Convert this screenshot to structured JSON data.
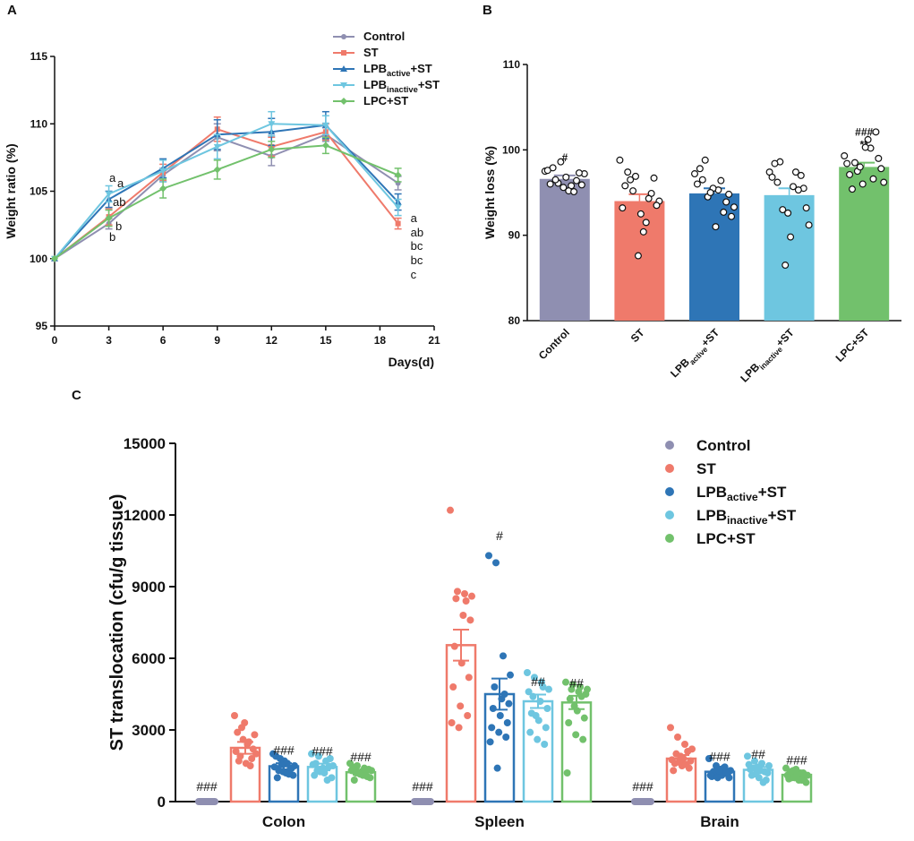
{
  "colors": {
    "Control": "#8f8fb1",
    "ST": "#ef7a6b",
    "LPB_active": "#2e75b6",
    "LPB_inactive": "#6ec6e0",
    "LPC": "#72c16c"
  },
  "legend": [
    {
      "key": "Control",
      "label": "Control",
      "sub": ""
    },
    {
      "key": "ST",
      "label": "ST",
      "sub": ""
    },
    {
      "key": "LPB_active",
      "label": "LPB",
      "sub": "active",
      "suffix": "+ST"
    },
    {
      "key": "LPB_inactive",
      "label": "LPB",
      "sub": "inactive",
      "suffix": "+ST"
    },
    {
      "key": "LPC",
      "label": "LPC+ST",
      "sub": ""
    }
  ],
  "chart_data": [
    {
      "panel": "A",
      "type": "line",
      "xlabel": "Days(d)",
      "ylabel": "Weight ratio (%)",
      "x": [
        0,
        3,
        6,
        9,
        12,
        15,
        19
      ],
      "xticks": [
        "0",
        "3",
        "6",
        "9",
        "12",
        "15",
        "18",
        "21"
      ],
      "xlim": [
        0,
        21
      ],
      "ylim": [
        95,
        115
      ],
      "yticks": [
        "95",
        "100",
        "105",
        "110",
        "115"
      ],
      "series": [
        {
          "key": "Control",
          "name": "Control",
          "values": [
            100,
            102.6,
            106.2,
            109.0,
            107.6,
            109.2,
            105.6
          ],
          "err": [
            0,
            0.4,
            0.5,
            1.0,
            0.7,
            0.5,
            0.5
          ],
          "letter": "ab",
          "letter3": "b"
        },
        {
          "key": "ST",
          "name": "ST",
          "values": [
            100,
            103.1,
            106.4,
            109.6,
            108.3,
            109.4,
            102.6
          ],
          "err": [
            0,
            0.6,
            0.6,
            0.9,
            0.7,
            0.6,
            0.4
          ],
          "letter": "c",
          "letter3": "ab"
        },
        {
          "key": "LPB_active",
          "name": "LPB active +ST",
          "values": [
            100,
            104.4,
            106.7,
            109.2,
            109.4,
            109.9,
            104.2
          ],
          "err": [
            0,
            0.6,
            0.7,
            1.1,
            1.0,
            1.0,
            0.6
          ],
          "letter": "bc",
          "letter3": "a"
        },
        {
          "key": "LPB_inactive",
          "name": "LPB inactive +ST",
          "values": [
            100,
            104.8,
            106.5,
            108.3,
            110.0,
            109.9,
            103.8
          ],
          "err": [
            0,
            0.6,
            0.8,
            0.9,
            0.9,
            0.7,
            0.6
          ],
          "letter": "bc",
          "letter3": "a"
        },
        {
          "key": "LPC",
          "name": "LPC+ST",
          "values": [
            100,
            103.0,
            105.2,
            106.6,
            108.1,
            108.4,
            106.2
          ],
          "err": [
            0,
            0.6,
            0.7,
            0.7,
            0.6,
            0.6,
            0.5
          ],
          "letter": "a",
          "letter3": "b"
        }
      ]
    },
    {
      "panel": "B",
      "type": "bar",
      "ylabel": "Weight loss (%)",
      "ylim": [
        80,
        110
      ],
      "yticks": [
        "80",
        "90",
        "100",
        "110"
      ],
      "categories": [
        "Control",
        "ST",
        "LPB active +ST",
        "LPB inactive +ST",
        "LPC+ST"
      ],
      "keys": [
        "Control",
        "ST",
        "LPB_active",
        "LPB_inactive",
        "LPC"
      ],
      "values": [
        96.6,
        94.0,
        94.9,
        94.7,
        98.0
      ],
      "err": [
        0.4,
        0.8,
        0.6,
        0.8,
        0.5
      ],
      "annotations": [
        "#",
        "",
        "",
        "",
        "###\n**"
      ],
      "points": [
        [
          97.5,
          96.1,
          95.8,
          97.2,
          96.5,
          95.2,
          95.9,
          97.9,
          96.8,
          97.3,
          96.0,
          95.6,
          96.4,
          97.6,
          98.6,
          95.1
        ],
        [
          98.8,
          95.2,
          91.5,
          94.0,
          96.5,
          90.4,
          93.5,
          97.4,
          92.5,
          96.7,
          95.8,
          87.6,
          94.9,
          93.2,
          96.9,
          94.3
        ],
        [
          97.2,
          94.5,
          96.4,
          93.3,
          98.8,
          95.3,
          92.2,
          96.5,
          91.0,
          94.8,
          97.8,
          95.5,
          93.9,
          96.0,
          95.0,
          92.7
        ],
        [
          97.4,
          93.0,
          97.4,
          91.2,
          98.6,
          95.7,
          93.2,
          96.2,
          89.8,
          95.5,
          98.4,
          92.6,
          97.0,
          96.8,
          86.5,
          95.3
        ],
        [
          99.3,
          97.5,
          100.2,
          96.2,
          98.5,
          101.2,
          97.8,
          95.4,
          100.3,
          99.0,
          97.1,
          96.0,
          102.1,
          98.4,
          98.0,
          96.6
        ]
      ]
    },
    {
      "panel": "C",
      "type": "bar",
      "ylabel": "ST translocation (cfu/g tissue)",
      "ylim": [
        0,
        15000
      ],
      "yticks": [
        "0",
        "3000",
        "6000",
        "9000",
        "12000",
        "15000"
      ],
      "categories": [
        "Colon",
        "Spleen",
        "Brain"
      ],
      "series": [
        {
          "key": "Control",
          "name": "Control",
          "values": [
            0,
            0,
            0
          ],
          "err": [
            0,
            0,
            0
          ],
          "sig": [
            "###",
            "###",
            "###"
          ]
        },
        {
          "key": "ST",
          "name": "ST",
          "values": [
            2250,
            6550,
            1800
          ],
          "err": [
            250,
            650,
            150
          ],
          "sig": [
            "",
            "",
            ""
          ]
        },
        {
          "key": "LPB_active",
          "name": "LPB active +ST",
          "values": [
            1480,
            4500,
            1250
          ],
          "err": [
            130,
            650,
            110
          ],
          "sig": [
            "###",
            "#",
            "###"
          ]
        },
        {
          "key": "LPB_inactive",
          "name": "LPB inactive +ST",
          "values": [
            1450,
            4200,
            1330
          ],
          "err": [
            140,
            280,
            120
          ],
          "sig": [
            "###",
            "##",
            "##"
          ]
        },
        {
          "key": "LPC",
          "name": "LPC+ST",
          "values": [
            1230,
            4150,
            1120
          ],
          "err": [
            100,
            280,
            90
          ],
          "sig": [
            "###",
            "##",
            "###"
          ]
        }
      ],
      "points": [
        [
          [
            0,
            0,
            0,
            0,
            0,
            0,
            0,
            0,
            0,
            0,
            0,
            0,
            0,
            0,
            0,
            0
          ],
          [
            3600,
            3100,
            2500,
            2000,
            1900,
            2400,
            2800,
            1700,
            1600,
            2200,
            2900,
            3300,
            1800,
            2100,
            2600,
            1500
          ],
          [
            2000,
            1800,
            1600,
            1500,
            1300,
            1200,
            1100,
            1000,
            1700,
            1400,
            1900,
            1250,
            1350,
            1450,
            1550,
            1150
          ],
          [
            2000,
            1900,
            1700,
            1500,
            1300,
            1200,
            1000,
            1600,
            1400,
            1800,
            1100,
            1350,
            1450,
            1550,
            1250,
            900
          ],
          [
            1600,
            1500,
            1400,
            1300,
            1200,
            1100,
            1000,
            900,
            1250,
            1350,
            1450,
            1150,
            1050,
            1300,
            1200,
            1100
          ]
        ],
        [
          [
            0,
            0,
            0,
            0,
            0,
            0,
            0,
            0,
            0,
            0,
            0,
            0,
            0,
            0,
            0,
            0
          ],
          [
            12200,
            8800,
            8700,
            8600,
            8500,
            7800,
            7600,
            6500,
            5800,
            5200,
            4800,
            4000,
            3600,
            3300,
            3100,
            8400
          ],
          [
            10300,
            10000,
            6100,
            5300,
            4800,
            4300,
            4100,
            3900,
            3600,
            3300,
            3100,
            2900,
            2700,
            2500,
            1400,
            4500
          ],
          [
            5400,
            5200,
            5000,
            4700,
            4400,
            4200,
            3900,
            3700,
            3400,
            3100,
            2900,
            2600,
            2400,
            4600,
            3600,
            4800
          ],
          [
            5000,
            4900,
            4800,
            4700,
            4700,
            4600,
            4500,
            4300,
            3800,
            3500,
            3300,
            2800,
            2600,
            1200,
            4000,
            4400
          ]
        ],
        [
          [
            0,
            0,
            0,
            0,
            0,
            0,
            0,
            0,
            0,
            0,
            0,
            0,
            0,
            0,
            0,
            0
          ],
          [
            3100,
            2700,
            2400,
            2200,
            2000,
            1800,
            1700,
            1600,
            1500,
            1400,
            1300,
            1900,
            2100,
            1750,
            1650,
            1550
          ],
          [
            1800,
            1500,
            1400,
            1300,
            1200,
            1100,
            1000,
            1250,
            1350,
            1150,
            1050,
            1300,
            1200,
            1100,
            1000,
            1450
          ],
          [
            1900,
            1700,
            1600,
            1500,
            1400,
            1300,
            1200,
            1100,
            1000,
            900,
            1350,
            1450,
            1250,
            1550,
            1150,
            800
          ],
          [
            1400,
            1300,
            1200,
            1100,
            1000,
            900,
            800,
            1250,
            1150,
            1050,
            950,
            1350,
            1200,
            1100,
            1000,
            900
          ]
        ]
      ]
    }
  ],
  "panel_labels": {
    "a": "A",
    "b": "B",
    "c": "C"
  }
}
